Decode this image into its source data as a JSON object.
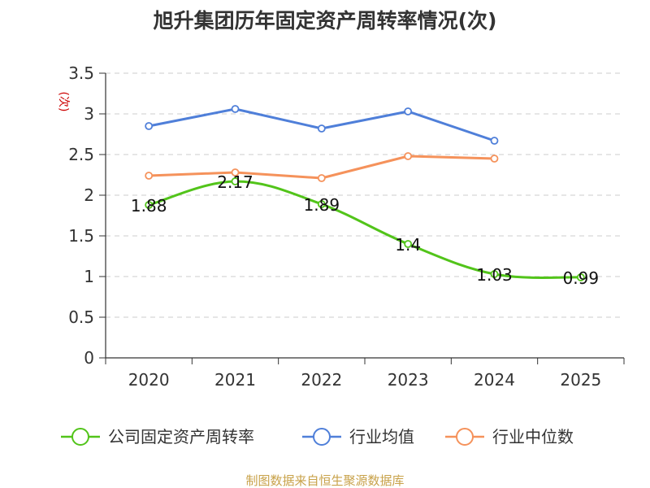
{
  "chart_data": {
    "type": "line",
    "title": "旭升集团历年固定资产周转率情况(次)",
    "ylabel": "(次)",
    "xlabel": "",
    "categories": [
      "2020",
      "2021",
      "2022",
      "2023",
      "2024",
      "2025"
    ],
    "ylim": [
      0,
      3.5
    ],
    "yticks": [
      0,
      0.5,
      1,
      1.5,
      2,
      2.5,
      3,
      3.5
    ],
    "ytick_labels": [
      "0",
      "0.5",
      "1",
      "1.5",
      "2",
      "2.5",
      "3",
      "3.5"
    ],
    "grid": true,
    "legend_position": "bottom",
    "series": [
      {
        "name": "公司固定资产周转率",
        "color": "#52c41a",
        "values": [
          1.88,
          2.17,
          1.89,
          1.4,
          1.03,
          0.99
        ],
        "labels": [
          "1.88",
          "2.17",
          "1.89",
          "1.4",
          "1.03",
          "0.99"
        ]
      },
      {
        "name": "行业均值",
        "color": "#4f7fd9",
        "values": [
          2.85,
          3.06,
          2.82,
          3.03,
          2.67,
          null
        ]
      },
      {
        "name": "行业中位数",
        "color": "#f5925b",
        "values": [
          2.24,
          2.28,
          2.21,
          2.48,
          2.45,
          null
        ]
      }
    ],
    "footer": "制图数据来自恒生聚源数据库"
  }
}
